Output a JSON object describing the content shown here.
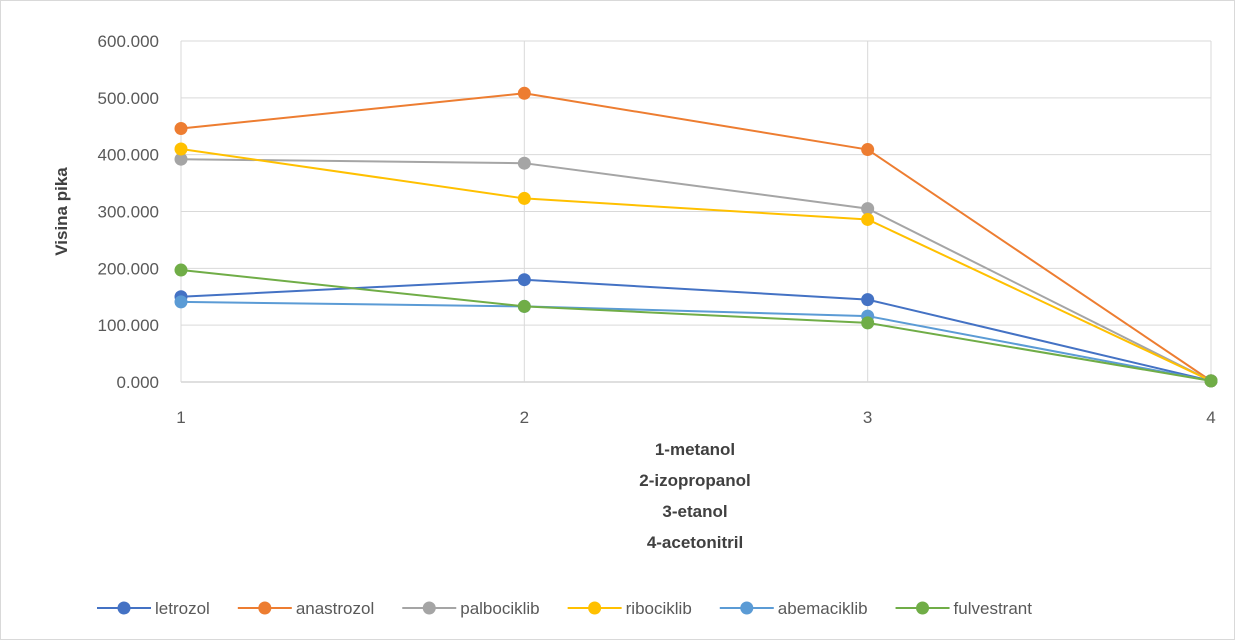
{
  "chart_data": {
    "type": "line",
    "title": "",
    "ylabel": "Visina pika",
    "xlabel_lines": [
      "1-metanol",
      "2-izopropanol",
      "3-etanol",
      "4-acetonitril"
    ],
    "x": [
      1,
      2,
      3,
      4
    ],
    "x_tick_labels": [
      "1",
      "2",
      "3",
      "4"
    ],
    "ylim": [
      0,
      600
    ],
    "y_ticks": [
      0,
      100,
      200,
      300,
      400,
      500,
      600
    ],
    "y_tick_labels": [
      "0.000",
      "100.000",
      "200.000",
      "300.000",
      "400.000",
      "500.000",
      "600.000"
    ],
    "grid": true,
    "legend_position": "bottom",
    "series": [
      {
        "name": "letrozol",
        "color": "#4472c4",
        "values": [
          150,
          180,
          145,
          2
        ]
      },
      {
        "name": "anastrozol",
        "color": "#ed7d31",
        "values": [
          446,
          508,
          409,
          2
        ]
      },
      {
        "name": "palbociklib",
        "color": "#a5a5a5",
        "values": [
          392,
          385,
          305,
          2
        ]
      },
      {
        "name": "ribociklib",
        "color": "#ffc000",
        "values": [
          410,
          323,
          286,
          2
        ]
      },
      {
        "name": "abemaciklib",
        "color": "#5b9bd5",
        "values": [
          141,
          133,
          116,
          2
        ]
      },
      {
        "name": "fulvestrant",
        "color": "#70ad47",
        "values": [
          197,
          133,
          104,
          2
        ]
      }
    ]
  }
}
